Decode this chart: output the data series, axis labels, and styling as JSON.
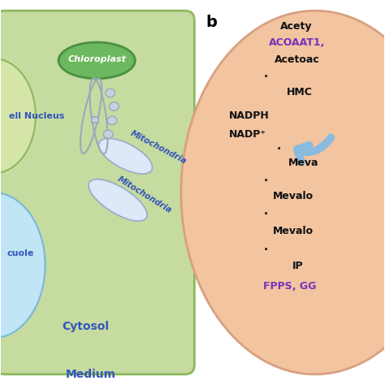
{
  "bg_color": "#ffffff",
  "cell_bg": "#c5dba0",
  "cell_border": "#8eb85e",
  "nucleus_color": "#d5e5a8",
  "nucleus_border": "#8eb85e",
  "vacuole_color": "#c0e5f5",
  "vacuole_border": "#7bb8d8",
  "chloroplast_fill": "#6cb85e",
  "chloroplast_border": "#4a9040",
  "mito1_fill": "#dde8f8",
  "mito1_border": "#99aacc",
  "mito2_fill": "#dde8f8",
  "mito2_border": "#99aacc",
  "yeast_fill": "#f2c4a0",
  "yeast_border": "#d8a080",
  "label_blue": "#3355bb",
  "label_blue_italic": "#3355bb",
  "label_purple": "#7733bb",
  "label_black": "#111111",
  "chrom_color": "#99aabb",
  "title_b": "b",
  "cell_labels": {
    "chloroplast": "Chloroplast",
    "nucleus": "ell Nucleus",
    "vacuole": "cuole",
    "mito1": "Mitochondria",
    "mito2": "Mitochondria",
    "cytosol": "Cytosol",
    "medium": "Medium"
  }
}
